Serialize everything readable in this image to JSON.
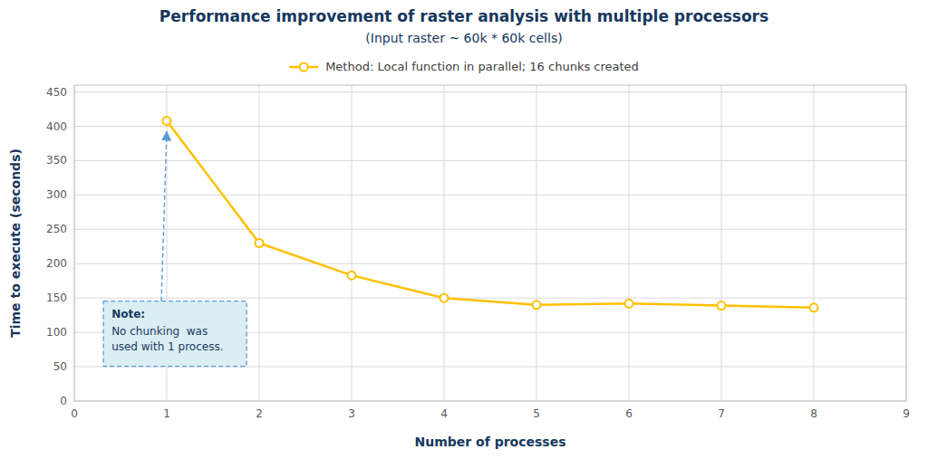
{
  "chart_data": {
    "type": "line",
    "title": "Performance improvement of raster analysis with multiple processors",
    "subtitle": "(Input raster ~ 60k * 60k cells)",
    "x_label": "Number of processes",
    "y_label": "Time to execute (seconds)",
    "x": [
      1,
      2,
      3,
      4,
      5,
      6,
      7,
      8
    ],
    "series": [
      {
        "name": "Method: Local function in parallel; 16 chunks created",
        "color": "#FFC000",
        "marker": "circle",
        "values": [
          408,
          230,
          183,
          150,
          140,
          142,
          139,
          136
        ]
      }
    ],
    "xlim": [
      0,
      9
    ],
    "ylim": [
      0,
      460
    ],
    "xticks": [
      0,
      1,
      2,
      3,
      4,
      5,
      6,
      7,
      8,
      9
    ],
    "yticks": [
      0,
      50,
      100,
      150,
      200,
      250,
      300,
      350,
      400,
      450
    ],
    "grid": true,
    "legend": "top",
    "annotations": [
      "Note:",
      "No chunking  was\nused with 1 process."
    ]
  }
}
